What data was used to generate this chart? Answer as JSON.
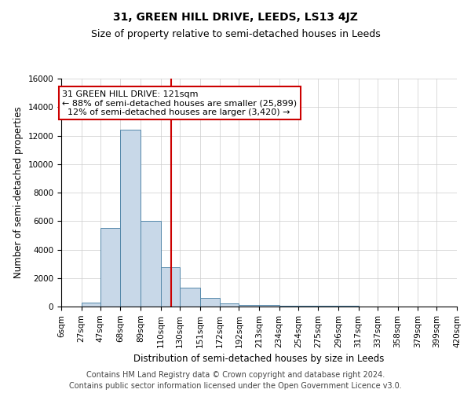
{
  "title": "31, GREEN HILL DRIVE, LEEDS, LS13 4JZ",
  "subtitle": "Size of property relative to semi-detached houses in Leeds",
  "xlabel": "Distribution of semi-detached houses by size in Leeds",
  "ylabel": "Number of semi-detached properties",
  "footnote1": "Contains HM Land Registry data © Crown copyright and database right 2024.",
  "footnote2": "Contains public sector information licensed under the Open Government Licence v3.0.",
  "annotation_line1": "31 GREEN HILL DRIVE: 121sqm",
  "annotation_line2": "← 88% of semi-detached houses are smaller (25,899)",
  "annotation_line3": "  12% of semi-detached houses are larger (3,420) →",
  "property_size": 121,
  "bin_edges": [
    6,
    27,
    47,
    68,
    89,
    110,
    130,
    151,
    172,
    192,
    213,
    234,
    254,
    275,
    296,
    317,
    337,
    358,
    379,
    399,
    420
  ],
  "bar_heights": [
    0,
    300,
    5500,
    12400,
    6000,
    2750,
    1350,
    600,
    220,
    130,
    100,
    70,
    50,
    40,
    30,
    20,
    15,
    10,
    5,
    5
  ],
  "bar_color": "#c8d8e8",
  "bar_edge_color": "#5588aa",
  "vline_color": "#cc0000",
  "annotation_box_edge_color": "#cc0000",
  "background_color": "#ffffff",
  "grid_color": "#cccccc",
  "ylim": [
    0,
    16000
  ],
  "yticks": [
    0,
    2000,
    4000,
    6000,
    8000,
    10000,
    12000,
    14000,
    16000
  ],
  "tick_labels": [
    "6sqm",
    "27sqm",
    "47sqm",
    "68sqm",
    "89sqm",
    "110sqm",
    "130sqm",
    "151sqm",
    "172sqm",
    "192sqm",
    "213sqm",
    "234sqm",
    "254sqm",
    "275sqm",
    "296sqm",
    "317sqm",
    "337sqm",
    "358sqm",
    "379sqm",
    "399sqm",
    "420sqm"
  ],
  "title_fontsize": 10,
  "subtitle_fontsize": 9,
  "annotation_fontsize": 8,
  "axis_label_fontsize": 8.5,
  "tick_fontsize": 7.5,
  "footnote_fontsize": 7
}
